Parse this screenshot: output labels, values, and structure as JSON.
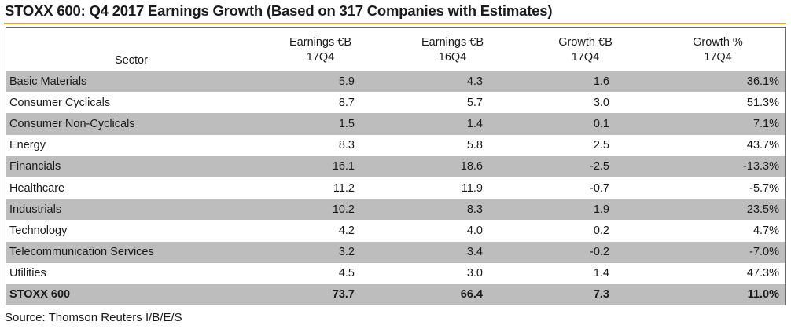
{
  "title": "STOXX 600: Q4 2017 Earnings Growth (Based on 317 Companies with Estimates)",
  "accent_color": "#f0a020",
  "source": "Source: Thomson Reuters I/B/E/S",
  "chart_data": {
    "type": "table",
    "title": "STOXX 600: Q4 2017 Earnings Growth (Based on 317 Companies with Estimates)",
    "columns": [
      {
        "label": "Sector",
        "sub": ""
      },
      {
        "label": "Earnings €B",
        "sub": "17Q4"
      },
      {
        "label": "Earnings €B",
        "sub": "16Q4"
      },
      {
        "label": "Growth €B",
        "sub": "17Q4"
      },
      {
        "label": "Growth %",
        "sub": "17Q4"
      }
    ],
    "rows": [
      {
        "sector": "Basic Materials",
        "e17": "5.9",
        "e16": "4.3",
        "g": "1.6",
        "gp": "36.1%"
      },
      {
        "sector": "Consumer Cyclicals",
        "e17": "8.7",
        "e16": "5.7",
        "g": "3.0",
        "gp": "51.3%"
      },
      {
        "sector": "Consumer Non-Cyclicals",
        "e17": "1.5",
        "e16": "1.4",
        "g": "0.1",
        "gp": "7.1%"
      },
      {
        "sector": "Energy",
        "e17": "8.3",
        "e16": "5.8",
        "g": "2.5",
        "gp": "43.7%"
      },
      {
        "sector": "Financials",
        "e17": "16.1",
        "e16": "18.6",
        "g": "-2.5",
        "gp": "-13.3%"
      },
      {
        "sector": "Healthcare",
        "e17": "11.2",
        "e16": "11.9",
        "g": "-0.7",
        "gp": "-5.7%"
      },
      {
        "sector": "Industrials",
        "e17": "10.2",
        "e16": "8.3",
        "g": "1.9",
        "gp": "23.5%"
      },
      {
        "sector": "Technology",
        "e17": "4.2",
        "e16": "4.0",
        "g": "0.2",
        "gp": "4.7%"
      },
      {
        "sector": "Telecommunication Services",
        "e17": "3.2",
        "e16": "3.4",
        "g": "-0.2",
        "gp": "-7.0%"
      },
      {
        "sector": "Utilities",
        "e17": "4.5",
        "e16": "3.0",
        "g": "1.4",
        "gp": "47.3%"
      }
    ],
    "total": {
      "sector": "STOXX 600",
      "e17": "73.7",
      "e16": "66.4",
      "g": "7.3",
      "gp": "11.0%"
    }
  }
}
